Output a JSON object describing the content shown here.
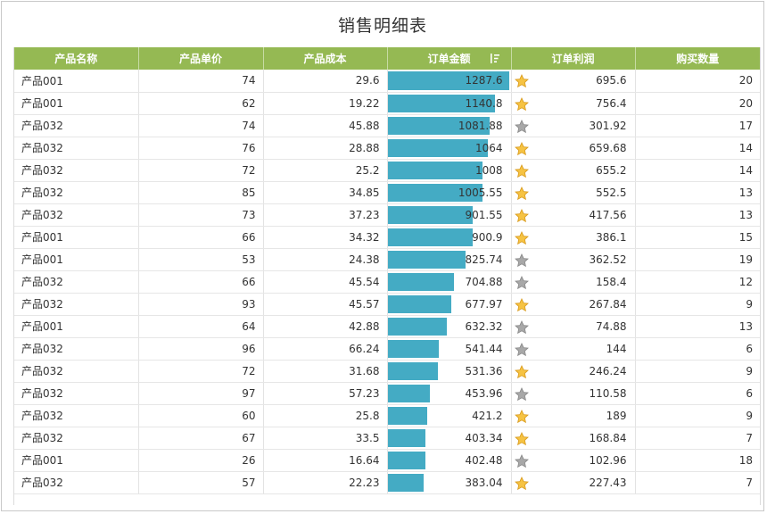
{
  "title": "销售明细表",
  "columns": [
    {
      "label": "产品名称"
    },
    {
      "label": "产品单价"
    },
    {
      "label": "产品成本"
    },
    {
      "label": "订单金额"
    },
    {
      "label": "订单利润"
    },
    {
      "label": "购买数量"
    }
  ],
  "sorted_column_icon": "sort-descending-icon",
  "colors": {
    "header_bg": "#95b953",
    "bar": "#44abc4",
    "star_gold": "#f6c343",
    "star_gray": "#a8a8a8"
  },
  "bar_max_amount": 1287.6,
  "rows": [
    {
      "name": "产品001",
      "price": "74",
      "cost": "29.6",
      "amount": "1287.6",
      "profit": "695.6",
      "qty": "20",
      "star": "gold"
    },
    {
      "name": "产品001",
      "price": "62",
      "cost": "19.22",
      "amount": "1140.8",
      "profit": "756.4",
      "qty": "20",
      "star": "gold"
    },
    {
      "name": "产品032",
      "price": "74",
      "cost": "45.88",
      "amount": "1081.88",
      "profit": "301.92",
      "qty": "17",
      "star": "gray"
    },
    {
      "name": "产品032",
      "price": "76",
      "cost": "28.88",
      "amount": "1064",
      "profit": "659.68",
      "qty": "14",
      "star": "gold"
    },
    {
      "name": "产品032",
      "price": "72",
      "cost": "25.2",
      "amount": "1008",
      "profit": "655.2",
      "qty": "14",
      "star": "gold"
    },
    {
      "name": "产品032",
      "price": "85",
      "cost": "34.85",
      "amount": "1005.55",
      "profit": "552.5",
      "qty": "13",
      "star": "gold"
    },
    {
      "name": "产品032",
      "price": "73",
      "cost": "37.23",
      "amount": "901.55",
      "profit": "417.56",
      "qty": "13",
      "star": "gold"
    },
    {
      "name": "产品001",
      "price": "66",
      "cost": "34.32",
      "amount": "900.9",
      "profit": "386.1",
      "qty": "15",
      "star": "gold"
    },
    {
      "name": "产品001",
      "price": "53",
      "cost": "24.38",
      "amount": "825.74",
      "profit": "362.52",
      "qty": "19",
      "star": "gray"
    },
    {
      "name": "产品032",
      "price": "66",
      "cost": "45.54",
      "amount": "704.88",
      "profit": "158.4",
      "qty": "12",
      "star": "gray"
    },
    {
      "name": "产品032",
      "price": "93",
      "cost": "45.57",
      "amount": "677.97",
      "profit": "267.84",
      "qty": "9",
      "star": "gold"
    },
    {
      "name": "产品001",
      "price": "64",
      "cost": "42.88",
      "amount": "632.32",
      "profit": "74.88",
      "qty": "13",
      "star": "gray"
    },
    {
      "name": "产品032",
      "price": "96",
      "cost": "66.24",
      "amount": "541.44",
      "profit": "144",
      "qty": "6",
      "star": "gray"
    },
    {
      "name": "产品032",
      "price": "72",
      "cost": "31.68",
      "amount": "531.36",
      "profit": "246.24",
      "qty": "9",
      "star": "gold"
    },
    {
      "name": "产品032",
      "price": "97",
      "cost": "57.23",
      "amount": "453.96",
      "profit": "110.58",
      "qty": "6",
      "star": "gray"
    },
    {
      "name": "产品032",
      "price": "60",
      "cost": "25.8",
      "amount": "421.2",
      "profit": "189",
      "qty": "9",
      "star": "gold"
    },
    {
      "name": "产品032",
      "price": "67",
      "cost": "33.5",
      "amount": "403.34",
      "profit": "168.84",
      "qty": "7",
      "star": "gold"
    },
    {
      "name": "产品001",
      "price": "26",
      "cost": "16.64",
      "amount": "402.48",
      "profit": "102.96",
      "qty": "18",
      "star": "gray"
    },
    {
      "name": "产品032",
      "price": "57",
      "cost": "22.23",
      "amount": "383.04",
      "profit": "227.43",
      "qty": "7",
      "star": "gold"
    }
  ]
}
